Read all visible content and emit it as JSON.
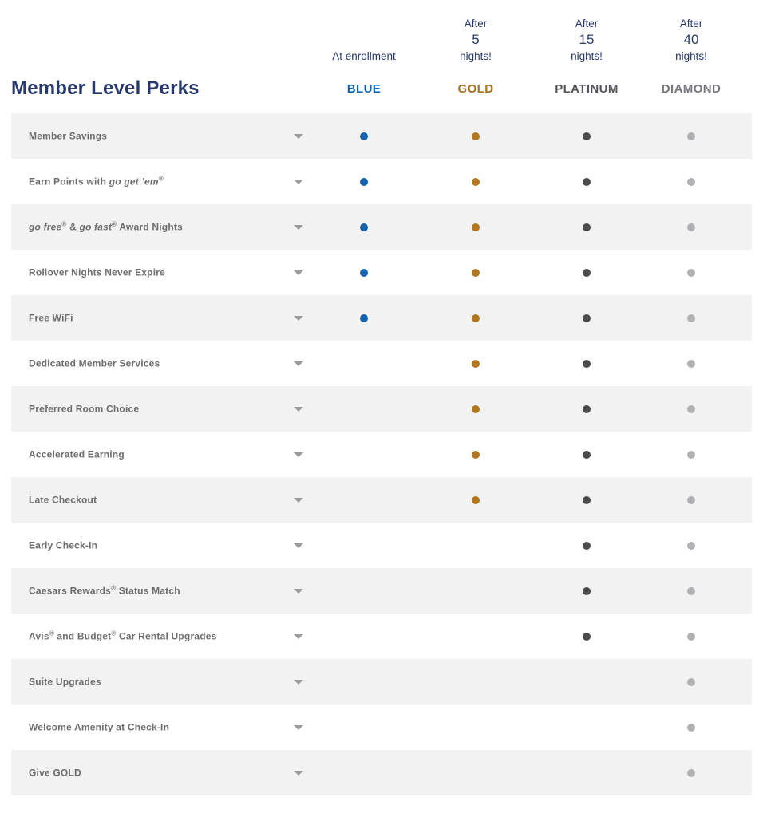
{
  "header": {
    "title": "Member Level Perks",
    "columns": [
      {
        "tier": "BLUE",
        "tier_color": "#1466ad",
        "dot_color": "#1563ae",
        "qualify_lines": [
          "At enrollment"
        ]
      },
      {
        "tier": "GOLD",
        "tier_color": "#a8731f",
        "dot_color": "#b2761f",
        "qualify_lines": [
          "After",
          "5",
          "nights!"
        ]
      },
      {
        "tier": "PLATINUM",
        "tier_color": "#54555b",
        "dot_color": "#4b4b4d",
        "qualify_lines": [
          "After",
          "15",
          "nights!"
        ]
      },
      {
        "tier": "DIAMOND",
        "tier_color": "#77787d",
        "dot_color": "#b1b1b4",
        "qualify_lines": [
          "After",
          "40",
          "nights!"
        ]
      }
    ]
  },
  "rows": [
    {
      "label": [
        {
          "t": "Member Savings"
        }
      ],
      "tiers": [
        true,
        true,
        true,
        true
      ]
    },
    {
      "label": [
        {
          "t": "Earn Points with "
        },
        {
          "t": "go get ’em",
          "i": true
        },
        {
          "t": "®",
          "sup": true
        }
      ],
      "tiers": [
        true,
        true,
        true,
        true
      ]
    },
    {
      "label": [
        {
          "t": "go free",
          "i": true
        },
        {
          "t": "®",
          "sup": true
        },
        {
          "t": " & "
        },
        {
          "t": "go fast",
          "i": true
        },
        {
          "t": "®",
          "sup": true
        },
        {
          "t": " Award Nights"
        }
      ],
      "tiers": [
        true,
        true,
        true,
        true
      ]
    },
    {
      "label": [
        {
          "t": "Rollover Nights Never Expire"
        }
      ],
      "tiers": [
        true,
        true,
        true,
        true
      ]
    },
    {
      "label": [
        {
          "t": "Free WiFi"
        }
      ],
      "tiers": [
        true,
        true,
        true,
        true
      ]
    },
    {
      "label": [
        {
          "t": "Dedicated Member Services"
        }
      ],
      "tiers": [
        false,
        true,
        true,
        true
      ]
    },
    {
      "label": [
        {
          "t": "Preferred Room Choice"
        }
      ],
      "tiers": [
        false,
        true,
        true,
        true
      ]
    },
    {
      "label": [
        {
          "t": "Accelerated Earning"
        }
      ],
      "tiers": [
        false,
        true,
        true,
        true
      ]
    },
    {
      "label": [
        {
          "t": "Late Checkout"
        }
      ],
      "tiers": [
        false,
        true,
        true,
        true
      ]
    },
    {
      "label": [
        {
          "t": "Early Check-In"
        }
      ],
      "tiers": [
        false,
        false,
        true,
        true
      ]
    },
    {
      "label": [
        {
          "t": "Caesars Rewards"
        },
        {
          "t": "®",
          "sup": true
        },
        {
          "t": " Status Match"
        }
      ],
      "tiers": [
        false,
        false,
        true,
        true
      ]
    },
    {
      "label": [
        {
          "t": "Avis"
        },
        {
          "t": "®",
          "sup": true
        },
        {
          "t": " and Budget"
        },
        {
          "t": "®",
          "sup": true
        },
        {
          "t": " Car Rental Upgrades"
        }
      ],
      "tiers": [
        false,
        false,
        true,
        true
      ]
    },
    {
      "label": [
        {
          "t": "Suite Upgrades"
        }
      ],
      "tiers": [
        false,
        false,
        false,
        true
      ]
    },
    {
      "label": [
        {
          "t": "Welcome Amenity at Check-In"
        }
      ],
      "tiers": [
        false,
        false,
        false,
        true
      ]
    },
    {
      "label": [
        {
          "t": "Give GOLD"
        }
      ],
      "tiers": [
        false,
        false,
        false,
        true
      ]
    }
  ],
  "icons": {
    "row_expander": "chevron-down-icon"
  },
  "colors": {
    "navy": "#28396e",
    "row_alt_bg": "#f2f2f2",
    "row_text": "#6d6d6d",
    "chevron": "#9b9b9b",
    "background": "#ffffff"
  }
}
